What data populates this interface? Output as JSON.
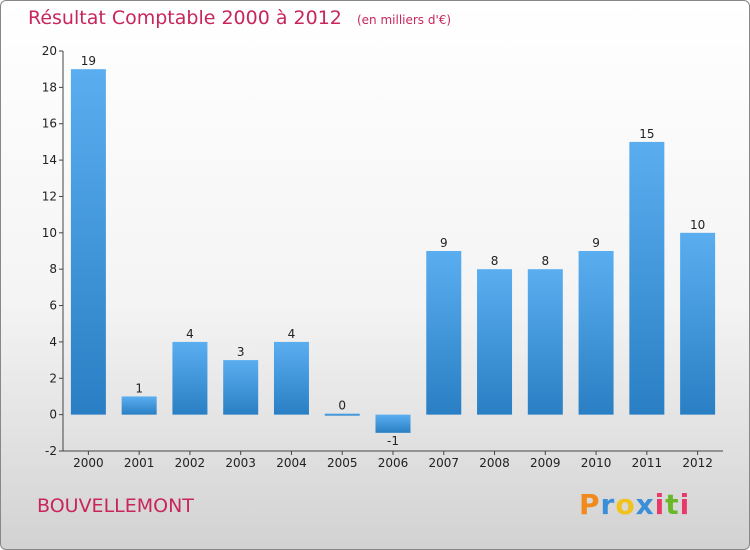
{
  "chart_data": {
    "type": "bar",
    "title": "Résultat Comptable 2000 à 2012",
    "subtitle": "(en milliers d'€)",
    "categories": [
      "2000",
      "2001",
      "2002",
      "2003",
      "2004",
      "2005",
      "2006",
      "2007",
      "2008",
      "2009",
      "2010",
      "2011",
      "2012"
    ],
    "values": [
      19,
      1,
      4,
      3,
      4,
      0,
      -1,
      9,
      8,
      8,
      9,
      15,
      10
    ],
    "value_labels": [
      "19",
      "1",
      "4",
      "3",
      "4",
      "0",
      "-1",
      "9",
      "8",
      "8",
      "9",
      "15",
      "10"
    ],
    "yticks": [
      "-2",
      "0",
      "2",
      "4",
      "6",
      "8",
      "10",
      "12",
      "14",
      "16",
      "18",
      "20"
    ],
    "ylim": [
      -2,
      20
    ],
    "grid": false,
    "bar_color_top": "#5aaef0",
    "bar_color_bottom": "#2a7fc4"
  },
  "commune_name": "BOUVELLEMONT",
  "logo": {
    "letters": [
      "P",
      "r",
      "o",
      "x",
      "i",
      "t",
      "i"
    ],
    "colors": [
      "#f08a1c",
      "#3a8fd8",
      "#f0c21c",
      "#3a8fd8",
      "#e83a6a",
      "#6ab82a",
      "#e83a6a"
    ]
  }
}
